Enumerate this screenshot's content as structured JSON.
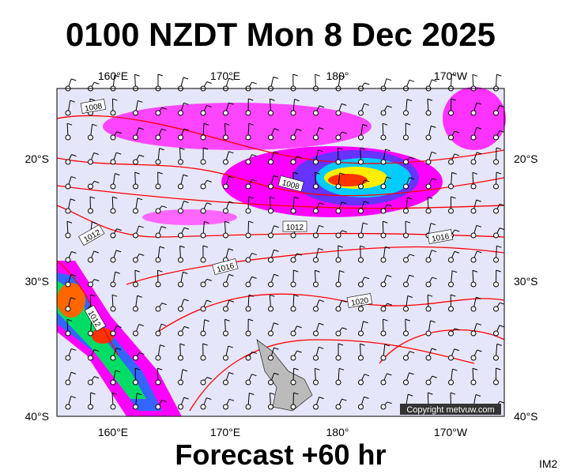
{
  "header": {
    "title": "0100 NZDT Mon 8 Dec 2025"
  },
  "map": {
    "top_labels": [
      "160°E",
      "170°E",
      "180°",
      "170°W"
    ],
    "bottom_labels": [
      "160°E",
      "170°E",
      "180°",
      "170°W"
    ],
    "left_labels": [
      "20°S",
      "30°S",
      "40°S"
    ],
    "right_labels": [
      "20°S",
      "30°S",
      "40°S"
    ],
    "isobar_labels": [
      "1008",
      "1008",
      "1012",
      "1012",
      "1016",
      "1016",
      "1020",
      "1012"
    ],
    "copyright": "Copyright metvuw.com"
  },
  "footer": {
    "forecast": "Forecast +60 hr",
    "code": "IM2"
  }
}
